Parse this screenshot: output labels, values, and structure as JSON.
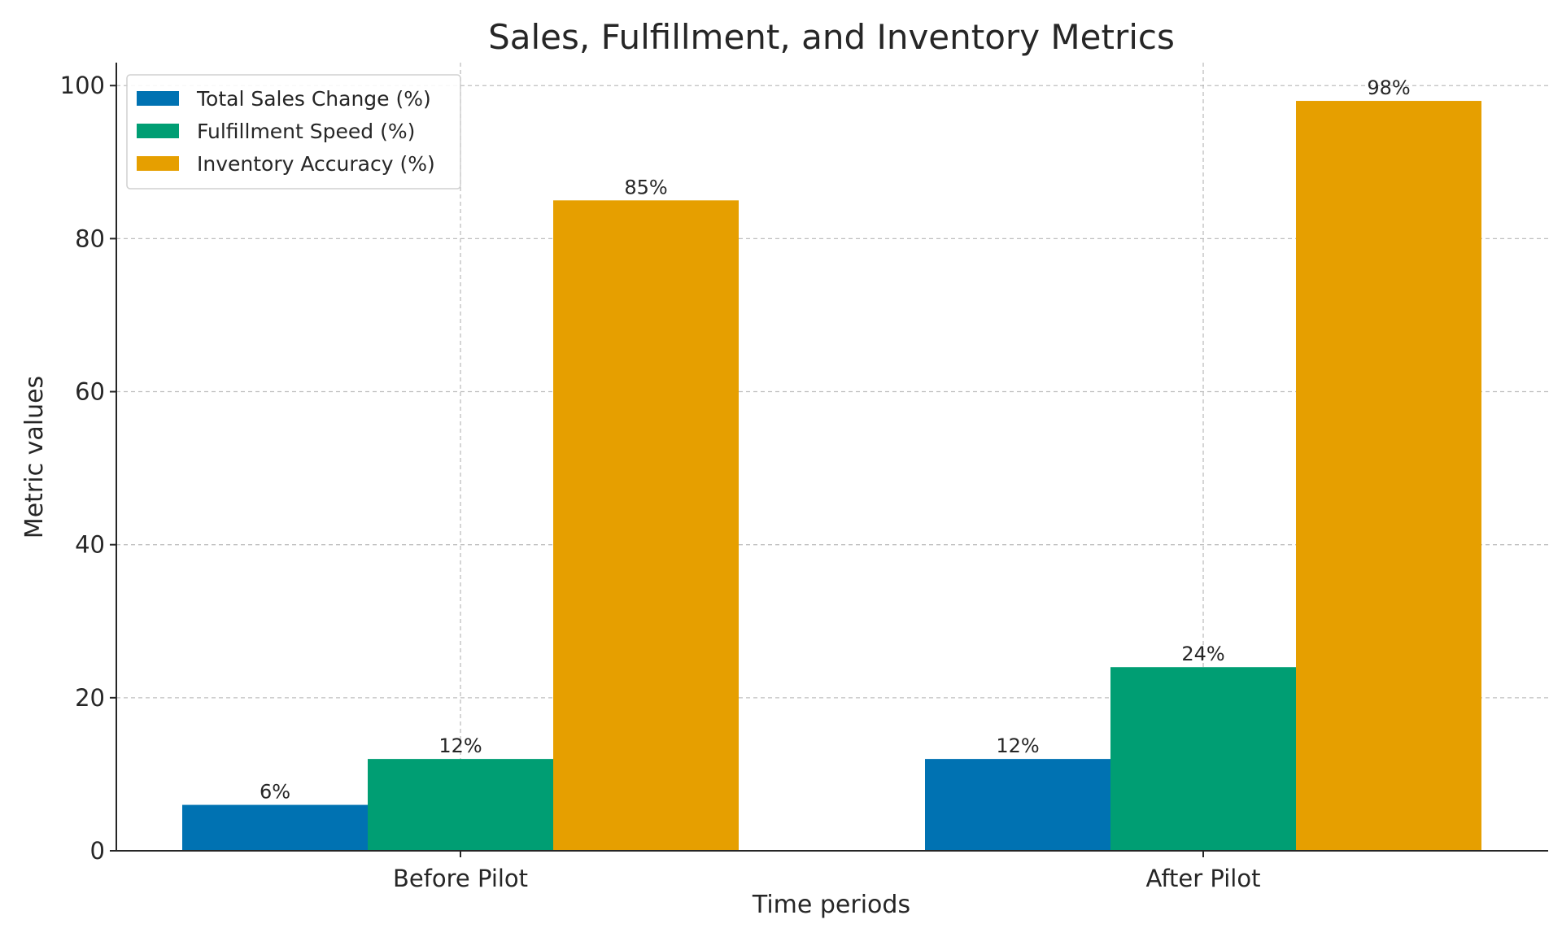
{
  "chart_data": {
    "type": "bar",
    "title": "Sales, Fulfillment, and Inventory Metrics",
    "xlabel": "Time periods",
    "ylabel": "Metric values",
    "categories": [
      "Before Pilot",
      "After Pilot"
    ],
    "series": [
      {
        "name": "Total Sales Change (%)",
        "color": "#0072B2",
        "values": [
          6,
          12
        ],
        "labels": [
          "6%",
          "12%"
        ]
      },
      {
        "name": "Fulfillment Speed (%)",
        "color": "#009E73",
        "values": [
          12,
          24
        ],
        "labels": [
          "12%",
          "24%"
        ]
      },
      {
        "name": "Inventory Accuracy (%)",
        "color": "#E69F00",
        "values": [
          85,
          98
        ],
        "labels": [
          "85%",
          "98%"
        ]
      }
    ],
    "ylim": [
      0,
      103
    ],
    "yticks": [
      0,
      20,
      40,
      60,
      80,
      100
    ],
    "grid": true,
    "legend_position": "top-left"
  }
}
